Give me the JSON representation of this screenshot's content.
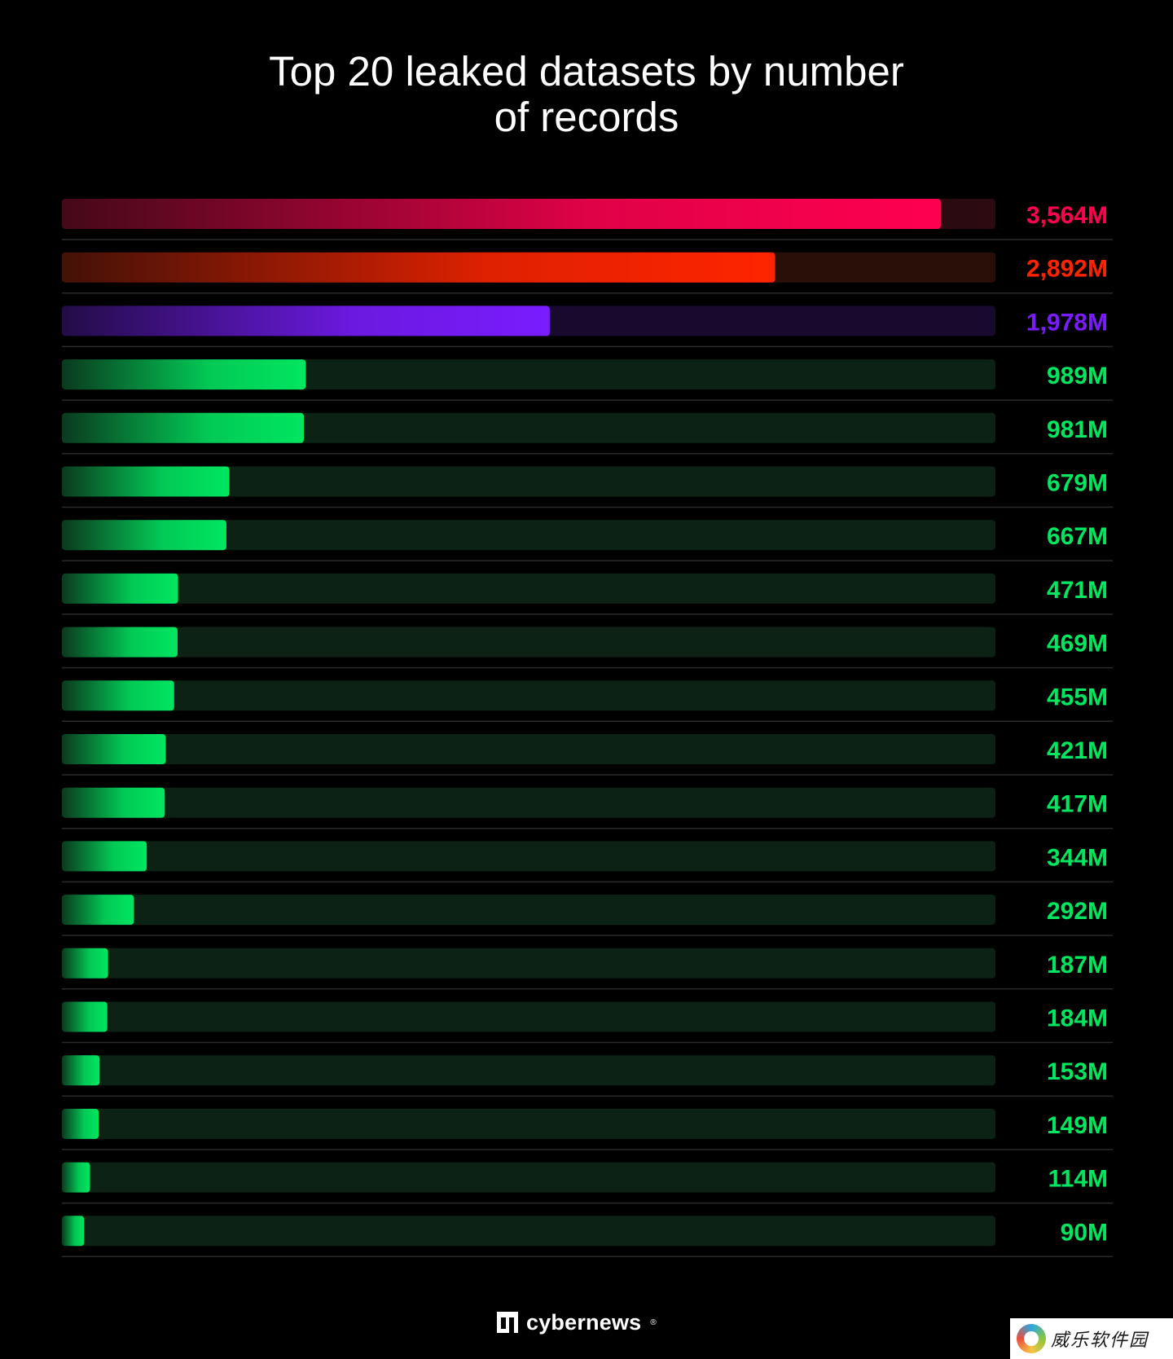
{
  "title_lines": [
    "Top 20 leaked datasets by number",
    "of records"
  ],
  "logo": {
    "text": "cybernews",
    "mark": "®"
  },
  "watermark": {
    "text": "威乐软件园"
  },
  "colors": {
    "background": "#000000",
    "red": "#ff0050",
    "orange_red": "#ff2400",
    "purple": "#7a1cff",
    "green": "#00e660",
    "track_red": "#2b0a12",
    "track_orange": "#2a0f08",
    "track_purple": "#170a2e",
    "track_green": "#0c2215",
    "divider": "#2a2a2a"
  },
  "chart_data": {
    "type": "bar",
    "orientation": "horizontal",
    "title": "Top 20 leaked datasets by number of records",
    "xlim": [
      0,
      3800
    ],
    "unit": "M",
    "values": [
      3564,
      2892,
      1978,
      989,
      981,
      679,
      667,
      471,
      469,
      455,
      421,
      417,
      344,
      292,
      187,
      184,
      153,
      149,
      114,
      90
    ],
    "labels": [
      "3,564M",
      "2,892M",
      "1,978M",
      "989M",
      "981M",
      "679M",
      "667M",
      "471M",
      "469M",
      "455M",
      "421M",
      "417M",
      "344M",
      "292M",
      "187M",
      "184M",
      "153M",
      "149M",
      "114M",
      "90M"
    ],
    "bar_colors": [
      "#ff0050",
      "#ff2400",
      "#7a1cff",
      "#00e660",
      "#00e660",
      "#00e660",
      "#00e660",
      "#00e660",
      "#00e660",
      "#00e660",
      "#00e660",
      "#00e660",
      "#00e660",
      "#00e660",
      "#00e660",
      "#00e660",
      "#00e660",
      "#00e660",
      "#00e660",
      "#00e660"
    ],
    "track_colors": [
      "#2b0a12",
      "#2a0f08",
      "#170a2e",
      "#0c2215",
      "#0c2215",
      "#0c2215",
      "#0c2215",
      "#0c2215",
      "#0c2215",
      "#0c2215",
      "#0c2215",
      "#0c2215",
      "#0c2215",
      "#0c2215",
      "#0c2215",
      "#0c2215",
      "#0c2215",
      "#0c2215",
      "#0c2215",
      "#0c2215"
    ],
    "grid": false,
    "legend": "none"
  }
}
